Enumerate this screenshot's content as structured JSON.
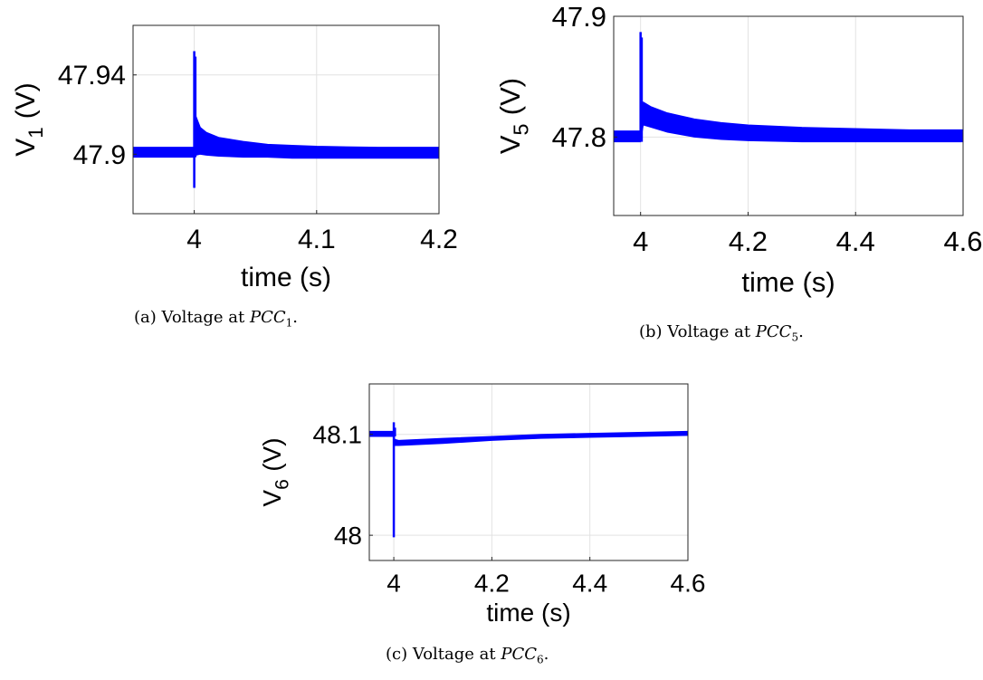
{
  "chart_data": [
    {
      "type": "line",
      "panel": "a",
      "title": "",
      "xlabel": "time (s)",
      "ylabel": "V",
      "ylabel_subscript": "1",
      "ylabel_unit": "(V)",
      "xlim": [
        3.95,
        4.2
      ],
      "ylim": [
        47.87,
        47.965
      ],
      "xticks": [
        4,
        4.1,
        4.2
      ],
      "xtick_labels": [
        "4",
        "4.1",
        "4.2"
      ],
      "yticks": [
        47.9,
        47.94
      ],
      "ytick_labels": [
        "47.9",
        "47.94"
      ],
      "grid": true,
      "series": [
        {
          "color": "#0000ff",
          "band": {
            "x": [
              3.95,
              4.0,
              4.0015,
              4.005,
              4.01,
              4.02,
              4.04,
              4.06,
              4.08,
              4.1,
              4.15,
              4.2
            ],
            "upper": [
              47.9035,
              47.9035,
              47.919,
              47.9135,
              47.911,
              47.9085,
              47.9065,
              47.905,
              47.9045,
              47.904,
              47.9035,
              47.9035
            ],
            "lower": [
              47.8985,
              47.8985,
              47.8995,
              47.9,
              47.8995,
              47.899,
              47.8985,
              47.8985,
              47.898,
              47.898,
              47.898,
              47.898
            ]
          },
          "spike_x": 4.0,
          "spike_range": [
            47.883,
            47.952
          ]
        }
      ]
    },
    {
      "type": "line",
      "panel": "b",
      "title": "",
      "xlabel": "time (s)",
      "ylabel": "V",
      "ylabel_subscript": "5",
      "ylabel_unit": "(V)",
      "xlim": [
        3.95,
        4.6
      ],
      "ylim": [
        47.735,
        47.9
      ],
      "xticks": [
        4,
        4.2,
        4.4,
        4.6
      ],
      "xtick_labels": [
        "4",
        "4.2",
        "4.4",
        "4.6"
      ],
      "yticks": [
        47.8,
        47.9
      ],
      "ytick_labels": [
        "47.8",
        "47.9"
      ],
      "grid": true,
      "series": [
        {
          "color": "#0000ff",
          "band": {
            "x": [
              3.95,
              4.0,
              4.005,
              4.02,
              4.05,
              4.1,
              4.15,
              4.2,
              4.3,
              4.4,
              4.5,
              4.6
            ],
            "upper": [
              47.805,
              47.805,
              47.829,
              47.825,
              47.82,
              47.815,
              47.812,
              47.81,
              47.808,
              47.807,
              47.806,
              47.806
            ],
            "lower": [
              47.796,
              47.796,
              47.81,
              47.808,
              47.804,
              47.8,
              47.798,
              47.797,
              47.796,
              47.796,
              47.796,
              47.796
            ]
          },
          "spike_x": 4.0,
          "spike_range": [
            47.8,
            47.887
          ]
        }
      ]
    },
    {
      "type": "line",
      "panel": "c",
      "title": "",
      "xlabel": "time (s)",
      "ylabel": "V",
      "ylabel_subscript": "6",
      "ylabel_unit": "(V)",
      "xlim": [
        3.95,
        4.6
      ],
      "ylim": [
        47.975,
        48.15
      ],
      "xticks": [
        4,
        4.2,
        4.4,
        4.6
      ],
      "xtick_labels": [
        "4",
        "4.2",
        "4.4",
        "4.6"
      ],
      "yticks": [
        48,
        48.1
      ],
      "ytick_labels": [
        "48",
        "48.1"
      ],
      "grid": true,
      "series": [
        {
          "color": "#0000ff",
          "band": {
            "x": [
              3.95,
              4.0,
              4.002,
              4.01,
              4.1,
              4.2,
              4.3,
              4.4,
              4.5,
              4.6
            ],
            "upper": [
              48.103,
              48.103,
              48.095,
              48.094,
              48.096,
              48.098,
              48.1,
              48.101,
              48.102,
              48.103
            ],
            "lower": [
              48.098,
              48.098,
              48.089,
              48.089,
              48.091,
              48.094,
              48.096,
              48.097,
              48.098,
              48.099
            ]
          },
          "spike_x": 4.0,
          "spike_range": [
            47.998,
            48.112
          ]
        }
      ]
    }
  ],
  "captions": {
    "a": {
      "prefix": "(a) Voltage at ",
      "math": "PCC",
      "sub": "1",
      "suffix": "."
    },
    "b": {
      "prefix": "(b) Voltage at ",
      "math": "PCC",
      "sub": "5",
      "suffix": "."
    },
    "c": {
      "prefix": "(c) Voltage at ",
      "math": "PCC",
      "sub": "6",
      "suffix": "."
    }
  }
}
